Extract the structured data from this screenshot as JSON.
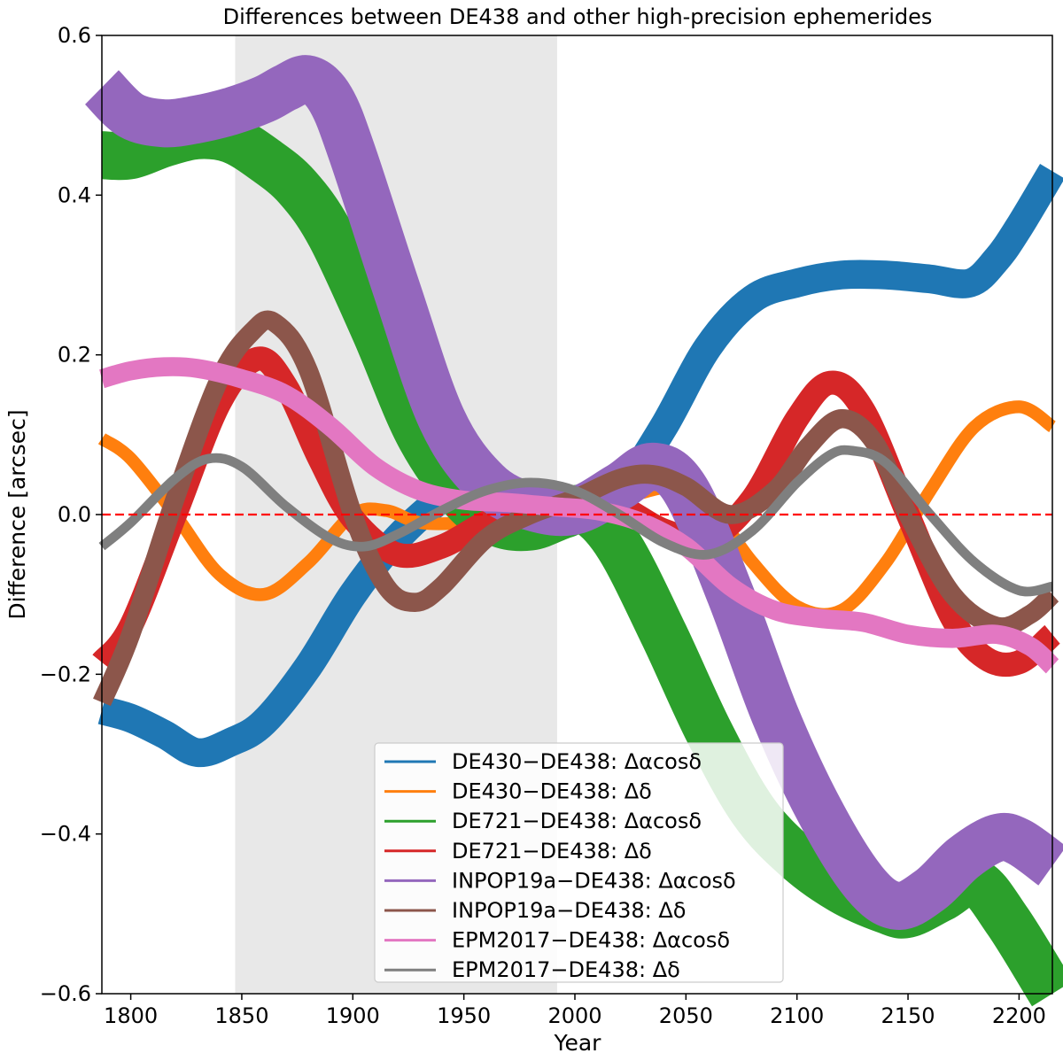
{
  "chart_data": {
    "type": "line",
    "title": "Differences between DE438 and other high-precision ephemerides",
    "xlabel": "Year",
    "ylabel": "Difference [arcsec]",
    "xlim": [
      1787,
      2215
    ],
    "ylim": [
      -0.6,
      0.6
    ],
    "x_ticks": [
      1800,
      1850,
      1900,
      1950,
      2000,
      2050,
      2100,
      2150,
      2200
    ],
    "y_ticks": [
      -0.6,
      -0.4,
      -0.2,
      0.0,
      0.2,
      0.4,
      0.6
    ],
    "y_tick_labels": [
      "−0.6",
      "−0.4",
      "−0.2",
      "0.0",
      "0.2",
      "0.4",
      "0.6"
    ],
    "shaded_region": {
      "x_start": 1847,
      "x_end": 1992,
      "color": "#e8e8e8"
    },
    "reference_line": {
      "y": 0.0,
      "color": "#ff0000",
      "style": "dashed"
    },
    "legend_position": "lower-center",
    "series": [
      {
        "name": "DE430−DE438: Δαcosδ",
        "color": "#1f77b4",
        "x": [
          1787,
          1800,
          1815,
          1830,
          1845,
          1860,
          1880,
          1900,
          1920,
          1940,
          1950,
          1960,
          1970,
          1980,
          1990,
          2000,
          2010,
          2020,
          2040,
          2060,
          2080,
          2100,
          2120,
          2140,
          2160,
          2178,
          2190,
          2200,
          2215
        ],
        "values": [
          -0.245,
          -0.255,
          -0.275,
          -0.298,
          -0.285,
          -0.26,
          -0.19,
          -0.1,
          -0.03,
          0.02,
          0.03,
          0.025,
          0.015,
          0.01,
          0.005,
          0.0,
          0.005,
          0.025,
          0.11,
          0.21,
          0.27,
          0.29,
          0.3,
          0.3,
          0.295,
          0.29,
          0.32,
          0.36,
          0.43
        ],
        "band": 0.018
      },
      {
        "name": "DE430−DE438: Δδ",
        "color": "#ff7f0e",
        "x": [
          1787,
          1800,
          1820,
          1840,
          1860,
          1880,
          1900,
          1915,
          1930,
          1950,
          1970,
          1990,
          2000,
          2020,
          2045,
          2060,
          2080,
          2100,
          2120,
          2140,
          2160,
          2180,
          2200,
          2215
        ],
        "values": [
          0.095,
          0.07,
          0.0,
          -0.075,
          -0.1,
          -0.06,
          0.0,
          0.005,
          -0.01,
          -0.01,
          0.0,
          0.01,
          0.01,
          0.02,
          0.035,
          0.015,
          -0.06,
          -0.115,
          -0.12,
          -0.06,
          0.03,
          0.11,
          0.135,
          0.11
        ],
        "band": 0.008
      },
      {
        "name": "DE721−DE438: Δαcosδ",
        "color": "#2ca02c",
        "x": [
          1787,
          1800,
          1815,
          1830,
          1845,
          1860,
          1875,
          1890,
          1910,
          1930,
          1950,
          1965,
          1980,
          1995,
          2005,
          2020,
          2040,
          2060,
          2080,
          2100,
          2120,
          2140,
          2150,
          2165,
          2180,
          2195,
          2215
        ],
        "values": [
          0.45,
          0.45,
          0.465,
          0.475,
          0.47,
          0.445,
          0.41,
          0.35,
          0.23,
          0.1,
          0.02,
          -0.01,
          -0.015,
          0.0,
          0.005,
          -0.04,
          -0.15,
          -0.27,
          -0.37,
          -0.43,
          -0.47,
          -0.495,
          -0.5,
          -0.48,
          -0.46,
          -0.51,
          -0.6
        ],
        "band": 0.03
      },
      {
        "name": "DE721−DE438: Δδ",
        "color": "#d62728",
        "x": [
          1787,
          1800,
          1820,
          1840,
          1857,
          1870,
          1885,
          1900,
          1920,
          1940,
          1960,
          1980,
          2000,
          2020,
          2040,
          2060,
          2080,
          2100,
          2115,
          2130,
          2150,
          2170,
          2185,
          2200,
          2215
        ],
        "values": [
          -0.185,
          -0.14,
          0.0,
          0.14,
          0.195,
          0.16,
          0.07,
          -0.005,
          -0.05,
          -0.04,
          -0.01,
          0.01,
          0.02,
          0.01,
          -0.02,
          -0.03,
          0.02,
          0.12,
          0.165,
          0.13,
          0.0,
          -0.13,
          -0.18,
          -0.185,
          -0.15
        ],
        "band": 0.015
      },
      {
        "name": "INPOP19a−DE438: Δαcosδ",
        "color": "#9467bd",
        "x": [
          1787,
          1800,
          1815,
          1830,
          1845,
          1860,
          1870,
          1880,
          1890,
          1900,
          1920,
          1940,
          1960,
          1980,
          2000,
          2020,
          2035,
          2050,
          2070,
          2090,
          2110,
          2130,
          2145,
          2160,
          2175,
          2190,
          2200,
          2215
        ],
        "values": [
          0.535,
          0.5,
          0.49,
          0.495,
          0.505,
          0.52,
          0.535,
          0.545,
          0.52,
          0.45,
          0.28,
          0.12,
          0.04,
          0.01,
          0.005,
          0.035,
          0.06,
          0.03,
          -0.1,
          -0.25,
          -0.37,
          -0.46,
          -0.49,
          -0.47,
          -0.43,
          -0.405,
          -0.41,
          -0.44
        ],
        "band": 0.03
      },
      {
        "name": "INPOP19a−DE438: Δδ",
        "color": "#8c564b",
        "x": [
          1787,
          1800,
          1820,
          1840,
          1855,
          1865,
          1880,
          1900,
          1915,
          1928,
          1940,
          1960,
          1980,
          2000,
          2020,
          2035,
          2050,
          2070,
          2090,
          2105,
          2120,
          2135,
          2150,
          2170,
          2190,
          2205,
          2215
        ],
        "values": [
          -0.235,
          -0.15,
          0.02,
          0.17,
          0.23,
          0.24,
          0.18,
          0.0,
          -0.09,
          -0.11,
          -0.09,
          -0.03,
          0.0,
          0.02,
          0.045,
          0.05,
          0.035,
          0.0,
          0.03,
          0.085,
          0.12,
          0.09,
          0.0,
          -0.1,
          -0.14,
          -0.125,
          -0.1
        ],
        "band": 0.012
      },
      {
        "name": "EPM2017−DE438: Δαcosδ",
        "color": "#e377c2",
        "x": [
          1787,
          1800,
          1815,
          1830,
          1850,
          1870,
          1890,
          1910,
          1930,
          1950,
          1970,
          1990,
          2010,
          2030,
          2050,
          2070,
          2090,
          2110,
          2130,
          2150,
          2170,
          2190,
          2205,
          2215
        ],
        "values": [
          0.17,
          0.18,
          0.185,
          0.183,
          0.17,
          0.15,
          0.11,
          0.06,
          0.03,
          0.018,
          0.015,
          0.01,
          0.005,
          -0.01,
          -0.04,
          -0.09,
          -0.12,
          -0.13,
          -0.135,
          -0.15,
          -0.155,
          -0.15,
          -0.165,
          -0.19
        ],
        "band": 0.012
      },
      {
        "name": "EPM2017−DE438: Δδ",
        "color": "#7f7f7f",
        "x": [
          1787,
          1800,
          1820,
          1835,
          1850,
          1870,
          1890,
          1905,
          1920,
          1940,
          1960,
          1980,
          2000,
          2020,
          2040,
          2060,
          2080,
          2100,
          2115,
          2125,
          2140,
          2160,
          2180,
          2200,
          2215
        ],
        "values": [
          -0.04,
          -0.01,
          0.045,
          0.07,
          0.06,
          0.01,
          -0.03,
          -0.04,
          -0.025,
          0.005,
          0.03,
          0.04,
          0.03,
          0.0,
          -0.035,
          -0.05,
          -0.02,
          0.04,
          0.075,
          0.08,
          0.065,
          0.0,
          -0.06,
          -0.095,
          -0.09
        ],
        "band": 0.006
      }
    ]
  }
}
